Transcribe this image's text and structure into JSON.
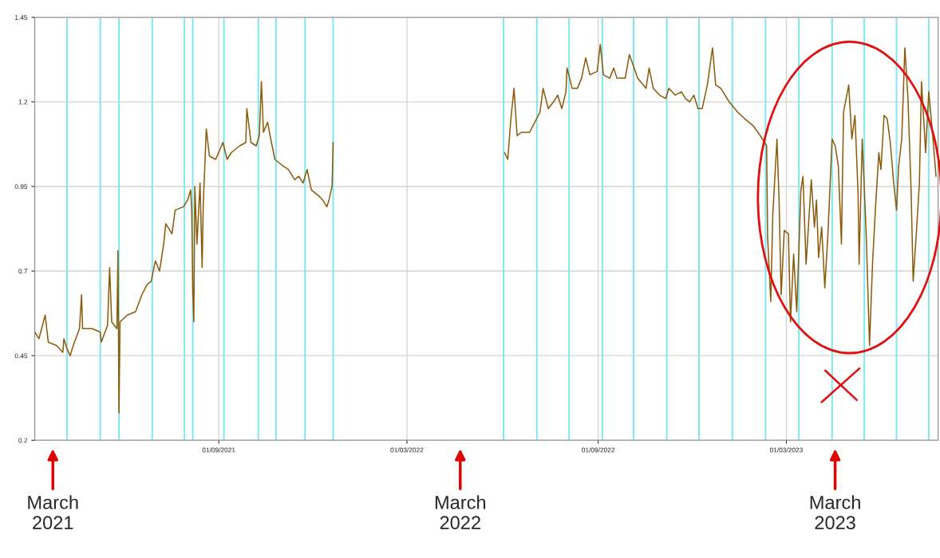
{
  "chart_data": {
    "type": "line",
    "xlim": [
      "2021-03-08",
      "2023-07-25"
    ],
    "xticks": [
      {
        "value": "2021-09-01",
        "label": "01/09/2021"
      },
      {
        "value": "2022-03-01",
        "label": "01/03/2022"
      },
      {
        "value": "2022-09-01",
        "label": "01/09/2022"
      },
      {
        "value": "2023-03-01",
        "label": "01/03/2023"
      }
    ],
    "ylim": [
      0.2,
      1.45
    ],
    "yticks": [
      0.2,
      0.45,
      0.7,
      0.95,
      1.2,
      1.45
    ],
    "grid": true,
    "series": [
      {
        "color": "#8c5b0a",
        "x": [
          "2021-03-08",
          "2021-03-12",
          "2021-03-18",
          "2021-03-21",
          "2021-03-29",
          "2021-04-04",
          "2021-04-05",
          "2021-04-08",
          "2021-04-11",
          "2021-04-14",
          "2021-04-20",
          "2021-04-22",
          "2021-04-23",
          "2021-05-02",
          "2021-05-10",
          "2021-05-11",
          "2021-05-17",
          "2021-05-19",
          "2021-05-21",
          "2021-05-26",
          "2021-05-27",
          "2021-05-28",
          "2021-05-29",
          "2021-06-05",
          "2021-06-13",
          "2021-06-19",
          "2021-06-24",
          "2021-06-28",
          "2021-07-02",
          "2021-07-06",
          "2021-07-10",
          "2021-07-12",
          "2021-07-18",
          "2021-07-21",
          "2021-07-29",
          "2021-08-02",
          "2021-08-05",
          "2021-08-06",
          "2021-08-07",
          "2021-08-08",
          "2021-08-09",
          "2021-08-11",
          "2021-08-14",
          "2021-08-16",
          "2021-08-17",
          "2021-08-20",
          "2021-08-23",
          "2021-08-29",
          "2021-09-05",
          "2021-09-09",
          "2021-09-13",
          "2021-09-21",
          "2021-09-27",
          "2021-09-28",
          "2021-10-02",
          "2021-10-07",
          "2021-10-10",
          "2021-10-12",
          "2021-10-14",
          "2021-10-18",
          "2021-10-21",
          "2021-10-25",
          "2021-10-29",
          "2021-11-02",
          "2021-11-07",
          "2021-11-13",
          "2021-11-17",
          "2021-11-21",
          "2021-11-25",
          "2021-11-29",
          "2021-12-07",
          "2021-12-10",
          "2021-12-14",
          "2021-12-16",
          "2021-12-19",
          "2021-12-20",
          "2022-03-01",
          "2022-06-03",
          "2022-06-06",
          "2022-06-09",
          "2022-06-12",
          "2022-06-15",
          "2022-06-19",
          "2022-06-27",
          "2022-07-02",
          "2022-07-07",
          "2022-07-10",
          "2022-07-15",
          "2022-07-20",
          "2022-07-24",
          "2022-07-28",
          "2022-08-01",
          "2022-08-02",
          "2022-08-07",
          "2022-08-12",
          "2022-08-16",
          "2022-08-20",
          "2022-08-24",
          "2022-08-31",
          "2022-09-03",
          "2022-09-06",
          "2022-09-12",
          "2022-09-16",
          "2022-09-19",
          "2022-09-27",
          "2022-10-01",
          "2022-10-09",
          "2022-10-17",
          "2022-10-20",
          "2022-10-24",
          "2022-10-30",
          "2022-11-05",
          "2022-11-08",
          "2022-11-14",
          "2022-11-20",
          "2022-11-24",
          "2022-11-28",
          "2022-12-02",
          "2022-12-06",
          "2022-12-10",
          "2022-12-15",
          "2022-12-20",
          "2022-12-23",
          "2022-12-28",
          "2023-01-05",
          "2023-01-13",
          "2023-01-20",
          "2023-01-28",
          "2023-02-04",
          "2023-02-10",
          "2023-02-11",
          "2023-02-14",
          "2023-02-16",
          "2023-02-20",
          "2023-02-22",
          "2023-02-24",
          "2023-02-27",
          "2023-03-03",
          "2023-03-05",
          "2023-03-08",
          "2023-03-11",
          "2023-03-15",
          "2023-03-17",
          "2023-03-20",
          "2023-03-25",
          "2023-03-28",
          "2023-03-30",
          "2023-04-01",
          "2023-04-04",
          "2023-04-07",
          "2023-04-10",
          "2023-04-14",
          "2023-04-17",
          "2023-04-20",
          "2023-04-23",
          "2023-04-25",
          "2023-04-30",
          "2023-05-03",
          "2023-05-06",
          "2023-05-09",
          "2023-05-10",
          "2023-05-13",
          "2023-05-16",
          "2023-05-17",
          "2023-05-20",
          "2023-05-23",
          "2023-05-26",
          "2023-05-29",
          "2023-05-31",
          "2023-06-03",
          "2023-06-06",
          "2023-06-09",
          "2023-06-12",
          "2023-06-15",
          "2023-06-17",
          "2023-06-20",
          "2023-06-23",
          "2023-06-26",
          "2023-06-29",
          "2023-07-01",
          "2023-07-04",
          "2023-07-07",
          "2023-07-09",
          "2023-07-13",
          "2023-07-16",
          "2023-07-19",
          "2023-07-23"
        ],
        "values": [
          0.52,
          0.5,
          0.57,
          0.49,
          0.48,
          0.46,
          0.5,
          0.47,
          0.45,
          0.48,
          0.53,
          0.63,
          0.53,
          0.53,
          0.52,
          0.49,
          0.54,
          0.71,
          0.55,
          0.53,
          0.76,
          0.28,
          0.55,
          0.57,
          0.58,
          0.63,
          0.66,
          0.67,
          0.73,
          0.7,
          0.78,
          0.84,
          0.81,
          0.88,
          0.89,
          0.91,
          0.94,
          0.88,
          0.64,
          0.55,
          0.95,
          0.78,
          0.96,
          0.71,
          0.89,
          1.12,
          1.04,
          1.03,
          1.08,
          1.03,
          1.05,
          1.07,
          1.08,
          1.18,
          1.08,
          1.07,
          1.1,
          1.26,
          1.11,
          1.14,
          1.09,
          1.03,
          1.02,
          1.01,
          1.0,
          0.97,
          0.98,
          0.96,
          1.0,
          0.94,
          0.92,
          0.91,
          0.89,
          0.91,
          0.95,
          1.08,
          null,
          1.05,
          1.03,
          1.15,
          1.24,
          1.1,
          1.11,
          1.11,
          1.14,
          1.17,
          1.24,
          1.18,
          1.2,
          1.22,
          1.18,
          1.23,
          1.3,
          1.24,
          1.24,
          1.27,
          1.33,
          1.28,
          1.29,
          1.37,
          1.28,
          1.27,
          1.3,
          1.27,
          1.27,
          1.34,
          1.27,
          1.24,
          1.3,
          1.24,
          1.22,
          1.21,
          1.24,
          1.22,
          1.23,
          1.21,
          1.2,
          1.22,
          1.18,
          1.18,
          1.25,
          1.36,
          1.25,
          1.24,
          1.2,
          1.17,
          1.15,
          1.13,
          1.1,
          1.07,
          0.8,
          0.61,
          0.87,
          1.09,
          0.91,
          0.63,
          0.82,
          0.81,
          0.55,
          0.75,
          0.58,
          0.94,
          0.98,
          0.72,
          0.97,
          0.83,
          0.91,
          0.74,
          0.83,
          0.65,
          0.81,
          1.09,
          1.07,
          1.01,
          0.78,
          1.17,
          1.25,
          1.09,
          1.16,
          0.93,
          0.72,
          1.09,
          0.87,
          0.79,
          0.48,
          0.73,
          0.9,
          1.05,
          1.0,
          1.16,
          1.15,
          1.08,
          0.97,
          0.88,
          1.01,
          1.09,
          1.36,
          1.21,
          0.94,
          0.67,
          0.81,
          0.96,
          1.26,
          1.05,
          1.23,
          1.13,
          0.98
        ]
      }
    ],
    "ref_lines": [
      {
        "axis": "x",
        "value": "2021-04-08",
        "color": "#7fe6ee"
      },
      {
        "axis": "x",
        "value": "2021-05-10",
        "color": "#7fe6ee"
      },
      {
        "axis": "x",
        "value": "2021-05-28",
        "color": "#7fe6ee"
      },
      {
        "axis": "x",
        "value": "2021-06-29",
        "color": "#7fe6ee"
      },
      {
        "axis": "x",
        "value": "2021-07-30",
        "color": "#7fe6ee"
      },
      {
        "axis": "x",
        "value": "2021-08-07",
        "color": "#7fe6ee"
      },
      {
        "axis": "x",
        "value": "2021-09-06",
        "color": "#7fe6ee"
      },
      {
        "axis": "x",
        "value": "2021-10-09",
        "color": "#7fe6ee"
      },
      {
        "axis": "x",
        "value": "2021-10-26",
        "color": "#7fe6ee"
      },
      {
        "axis": "x",
        "value": "2021-11-23",
        "color": "#7fe6ee"
      },
      {
        "axis": "x",
        "value": "2021-12-20",
        "color": "#7fe6ee"
      },
      {
        "axis": "x",
        "value": "2022-06-02",
        "color": "#7fe6ee"
      },
      {
        "axis": "x",
        "value": "2022-07-04",
        "color": "#7fe6ee"
      },
      {
        "axis": "x",
        "value": "2022-08-04",
        "color": "#7fe6ee"
      },
      {
        "axis": "x",
        "value": "2022-09-05",
        "color": "#7fe6ee"
      },
      {
        "axis": "x",
        "value": "2022-10-05",
        "color": "#7fe6ee"
      },
      {
        "axis": "x",
        "value": "2022-11-06",
        "color": "#7fe6ee"
      },
      {
        "axis": "x",
        "value": "2022-12-07",
        "color": "#7fe6ee"
      },
      {
        "axis": "x",
        "value": "2023-01-08",
        "color": "#7fe6ee"
      },
      {
        "axis": "x",
        "value": "2023-02-09",
        "color": "#7fe6ee"
      },
      {
        "axis": "x",
        "value": "2023-03-13",
        "color": "#7fe6ee"
      },
      {
        "axis": "x",
        "value": "2023-04-14",
        "color": "#7fe6ee"
      },
      {
        "axis": "x",
        "value": "2023-05-15",
        "color": "#7fe6ee"
      },
      {
        "axis": "x",
        "value": "2023-06-15",
        "color": "#7fe6ee"
      },
      {
        "axis": "x",
        "value": "2023-07-16",
        "color": "#7fe6ee"
      }
    ],
    "annotations": [
      "March\n2021",
      "March\n2022",
      "March\n2023"
    ]
  }
}
